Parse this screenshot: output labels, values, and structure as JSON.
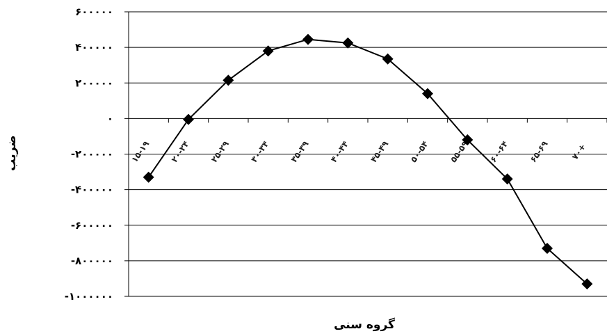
{
  "chart_data": {
    "type": "line",
    "title": "",
    "xlabel": "گروه سنی",
    "ylabel": "ضریب",
    "ylim": [
      -1000000,
      600000
    ],
    "yticks": [
      600000,
      400000,
      200000,
      0,
      -200000,
      -400000,
      -600000,
      -800000,
      -1000000
    ],
    "ytick_labels": [
      "۶۰۰۰۰۰",
      "۴۰۰۰۰۰",
      "۲۰۰۰۰۰",
      "۰",
      "-۲۰۰۰۰۰",
      "-۴۰۰۰۰۰",
      "-۶۰۰۰۰۰",
      "-۸۰۰۰۰۰",
      "-۱۰۰۰۰۰۰"
    ],
    "categories": [
      "۱۵-۱۹",
      "۲۰-۲۴",
      "۲۵-۲۹",
      "۳۰-۳۴",
      "۳۵-۳۹",
      "۴۰-۴۴",
      "۴۵-۴۹",
      "۵۰-۵۴",
      "۵۵-۵۹",
      "۶۰-۶۴",
      "۶۵-۶۹",
      "۷۰+"
    ],
    "series": [
      {
        "values": [
          -330000,
          -5000,
          215000,
          380000,
          445000,
          425000,
          335000,
          140000,
          -120000,
          -340000,
          -730000,
          -930000
        ]
      }
    ],
    "marker": "diamond",
    "line_color": "#000000",
    "grid": true
  }
}
